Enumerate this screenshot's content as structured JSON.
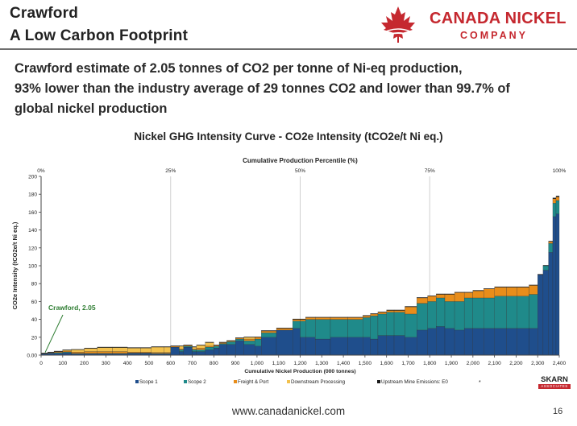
{
  "slide": {
    "title_line1": "Crawford",
    "title_line2": "A Low Carbon Footprint",
    "headline_line1": "Crawford estimate of 2.05 tonnes of CO2 per tonne of Ni-eq production,",
    "headline_line2": "93% lower than the industry average of 29 tonnes CO2 and lower than 99.7% of",
    "headline_line3": "global nickel production",
    "footer_url": "www.canadanickel.com",
    "page_number": "16"
  },
  "logo": {
    "name_line1": "CANADA NICKEL",
    "name_line2": "COMPANY",
    "icon": "maple-leaf-icon",
    "color": "#c5282f"
  },
  "skarn_logo": {
    "text": "SKARN",
    "subtext": "ASSOCIATES"
  },
  "colors": {
    "scope1": "#1f4e8c",
    "scope2": "#1f8a8a",
    "freight": "#e88d1a",
    "downstream": "#f2c14e",
    "upstream": "#1a1a1a",
    "crawford_label": "#2e7d32"
  },
  "chart_data": {
    "type": "bar",
    "subtype": "stacked cost-curve (variable width)",
    "title": "Nickel GHG Intensity Curve - CO2e Intensity (tCO2e/t Ni eq.)",
    "top_axis_label": "Cumulative Production Percentile (%)",
    "top_ticks": [
      "0%",
      "25%",
      "50%",
      "75%",
      "100%"
    ],
    "xlabel": "Cumulative Nickel Production (000 tonnes)",
    "ylabel": "CO2e Intensity (tCO2e/t Ni eq.)",
    "xlim": [
      0,
      2400
    ],
    "ylim": [
      0,
      200
    ],
    "x_ticks": [
      0,
      100,
      200,
      300,
      400,
      500,
      600,
      700,
      800,
      900,
      1000,
      1100,
      1200,
      1300,
      1400,
      1500,
      1600,
      1700,
      1800,
      1900,
      2000,
      2100,
      2200,
      2300,
      2400
    ],
    "x_tick_labels": [
      "0",
      "100",
      "200",
      "300",
      "400",
      "500",
      "600",
      "700",
      "800",
      "900",
      "1,000",
      "1,100",
      "1,200",
      "1,300",
      "1,400",
      "1,500",
      "1,600",
      "1,700",
      "1,800",
      "1,900",
      "2,000",
      "2,100",
      "2,200",
      "2,300",
      "2,400"
    ],
    "y_ticks": [
      0,
      20,
      40,
      60,
      80,
      100,
      120,
      140,
      160,
      180,
      200
    ],
    "y_tick_labels": [
      "0.00",
      "20",
      "40",
      "60",
      "80",
      "100",
      "120",
      "140",
      "160",
      "180",
      "200"
    ],
    "gridlines": "vertical at 25%, 50%, 75%",
    "legend": [
      {
        "name": "Scope 1",
        "color": "#1f4e8c"
      },
      {
        "name": "Scope 2",
        "color": "#1f8a8a"
      },
      {
        "name": "Freight & Port",
        "color": "#e88d1a"
      },
      {
        "name": "Downstream Processing",
        "color": "#f2c14e"
      },
      {
        "name": "Upstream Mine Emissions: E0",
        "color": "#1a1a1a"
      }
    ],
    "legend_extra": "*",
    "annotation": {
      "text": "Crawford, 2.05",
      "x": 15,
      "y": 2.05
    },
    "segment_fields": [
      "x_start",
      "x_end",
      "scope1",
      "scope2",
      "freight",
      "downstream",
      "upstream"
    ],
    "segments": [
      [
        0,
        30,
        1.5,
        0.2,
        0.3,
        0,
        0.05
      ],
      [
        30,
        60,
        2,
        0.5,
        0.5,
        0,
        0.1
      ],
      [
        60,
        100,
        2,
        1,
        1,
        0,
        0.2
      ],
      [
        100,
        140,
        2.5,
        1,
        1,
        1,
        0.2
      ],
      [
        140,
        200,
        1.5,
        0.5,
        1.5,
        2.5,
        0.2
      ],
      [
        200,
        260,
        1.5,
        0.5,
        2,
        3.5,
        0.2
      ],
      [
        260,
        330,
        1.5,
        0.5,
        2,
        4.5,
        0.3
      ],
      [
        330,
        400,
        1.5,
        0.5,
        2,
        4.5,
        0.3
      ],
      [
        400,
        460,
        2,
        0.5,
        1,
        4.5,
        0.3
      ],
      [
        460,
        510,
        2,
        0.5,
        1,
        4.5,
        0.3
      ],
      [
        510,
        570,
        1.5,
        0.5,
        1,
        6,
        0.3
      ],
      [
        570,
        600,
        1.5,
        0.5,
        1,
        6,
        0.3
      ],
      [
        600,
        640,
        9,
        0,
        1,
        0,
        0.3
      ],
      [
        640,
        660,
        4,
        2,
        1,
        3,
        0.3
      ],
      [
        660,
        700,
        9,
        1,
        1,
        0,
        0.3
      ],
      [
        700,
        720,
        4,
        2,
        1,
        2,
        0.3
      ],
      [
        720,
        760,
        4,
        2,
        2,
        3,
        0.3
      ],
      [
        760,
        800,
        6,
        3,
        1,
        4,
        0.3
      ],
      [
        800,
        825,
        8,
        2,
        1,
        0,
        0.3
      ],
      [
        825,
        860,
        12,
        1,
        1,
        0,
        0.3
      ],
      [
        860,
        900,
        12,
        3,
        1,
        0,
        0.3
      ],
      [
        900,
        940,
        16,
        2,
        1,
        0,
        0.5
      ],
      [
        940,
        990,
        12,
        4,
        2,
        2,
        0.5
      ],
      [
        990,
        1020,
        10,
        8,
        2,
        0,
        0.5
      ],
      [
        1020,
        1090,
        20,
        5,
        2,
        0,
        0.5
      ],
      [
        1090,
        1165,
        28,
        0,
        2,
        0,
        0.5
      ],
      [
        1165,
        1200,
        30,
        8,
        2,
        0,
        0.5
      ],
      [
        1200,
        1225,
        20,
        18,
        2,
        0,
        0.5
      ],
      [
        1225,
        1270,
        20,
        20,
        2,
        0,
        0.5
      ],
      [
        1270,
        1340,
        18,
        22,
        2,
        0,
        0.5
      ],
      [
        1340,
        1420,
        20,
        20,
        2,
        0,
        0.5
      ],
      [
        1420,
        1490,
        20,
        20,
        2,
        0,
        0.5
      ],
      [
        1490,
        1525,
        20,
        22,
        2,
        0,
        0.5
      ],
      [
        1525,
        1560,
        18,
        26,
        2,
        0,
        0.5
      ],
      [
        1560,
        1600,
        22,
        24,
        2,
        0,
        0.5
      ],
      [
        1600,
        1635,
        22,
        26,
        2,
        0,
        0.5
      ],
      [
        1635,
        1685,
        22,
        26,
        2,
        0,
        0.5
      ],
      [
        1685,
        1740,
        20,
        26,
        8,
        0,
        0.5
      ],
      [
        1740,
        1790,
        28,
        30,
        6,
        0,
        0.5
      ],
      [
        1790,
        1830,
        30,
        30,
        6,
        0,
        0.5
      ],
      [
        1830,
        1870,
        32,
        32,
        4,
        0,
        0.5
      ],
      [
        1870,
        1915,
        30,
        30,
        8,
        0,
        0.5
      ],
      [
        1915,
        1960,
        28,
        32,
        10,
        0,
        0.5
      ],
      [
        1960,
        2000,
        30,
        34,
        6,
        0,
        0.5
      ],
      [
        2000,
        2050,
        30,
        34,
        8,
        0,
        0.5
      ],
      [
        2050,
        2100,
        30,
        34,
        10,
        0,
        0.5
      ],
      [
        2100,
        2155,
        30,
        36,
        10,
        0,
        0.5
      ],
      [
        2155,
        2205,
        30,
        36,
        10,
        0,
        0.5
      ],
      [
        2205,
        2260,
        30,
        36,
        10,
        0,
        0.5
      ],
      [
        2260,
        2300,
        30,
        38,
        10,
        0,
        0.5
      ],
      [
        2300,
        2325,
        90,
        0,
        0,
        0,
        0.5
      ],
      [
        2325,
        2350,
        95,
        5,
        0,
        0,
        0.5
      ],
      [
        2350,
        2370,
        115,
        10,
        2,
        0,
        0.5
      ],
      [
        2370,
        2385,
        155,
        15,
        5,
        0,
        1
      ],
      [
        2385,
        2400,
        158,
        15,
        4,
        0,
        1
      ]
    ]
  }
}
